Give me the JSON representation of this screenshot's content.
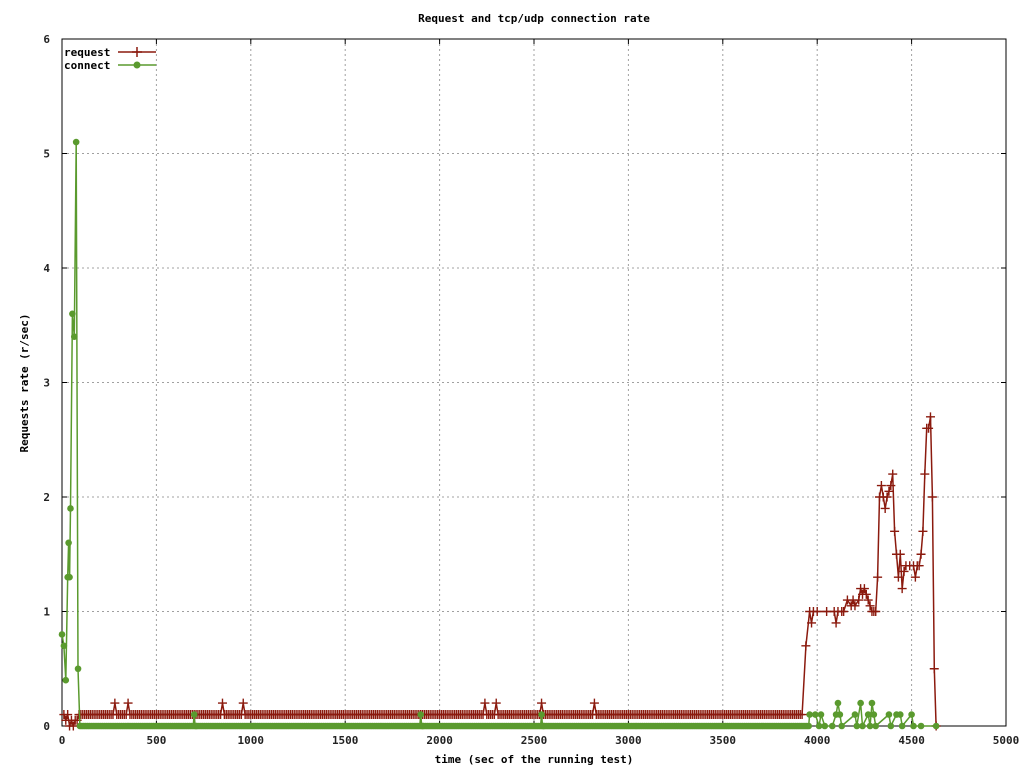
{
  "chart_data": {
    "type": "line",
    "title": "Request and tcp/udp connection rate",
    "xlabel": "time (sec of the running test)",
    "ylabel": "Requests rate (r/sec)",
    "xlim": [
      0,
      5000
    ],
    "ylim": [
      0,
      6
    ],
    "x_ticks": [
      "0",
      "500",
      "1000",
      "1500",
      "2000",
      "2500",
      "3000",
      "3500",
      "4000",
      "4500",
      "5000"
    ],
    "y_ticks": [
      "0",
      "1",
      "2",
      "3",
      "4",
      "5",
      "6"
    ],
    "grid": true,
    "legend_position": "top-left",
    "series": [
      {
        "name": "request",
        "color": "#8b1a0e",
        "marker": "plus",
        "points": [
          [
            10,
            0.1
          ],
          [
            20,
            0.05
          ],
          [
            30,
            0.1
          ],
          [
            40,
            0.0
          ],
          [
            50,
            0.05
          ],
          [
            60,
            0.0
          ],
          [
            70,
            0.05
          ],
          [
            80,
            0.05
          ],
          [
            90,
            0.1
          ],
          [
            280,
            0.2
          ],
          [
            290,
            0.1
          ],
          [
            350,
            0.2
          ],
          [
            360,
            0.1
          ],
          [
            850,
            0.2
          ],
          [
            860,
            0.1
          ],
          [
            960,
            0.2
          ],
          [
            970,
            0.1
          ],
          [
            2240,
            0.2
          ],
          [
            2250,
            0.1
          ],
          [
            2300,
            0.2
          ],
          [
            2310,
            0.1
          ],
          [
            2540,
            0.2
          ],
          [
            2550,
            0.1
          ],
          [
            2820,
            0.2
          ],
          [
            2830,
            0.1
          ],
          [
            3920,
            0.1
          ],
          [
            3940,
            0.7
          ],
          [
            3960,
            1.0
          ],
          [
            3970,
            0.9
          ],
          [
            3980,
            1.0
          ],
          [
            4000,
            1.0
          ],
          [
            4050,
            1.0
          ],
          [
            4090,
            1.0
          ],
          [
            4100,
            0.9
          ],
          [
            4110,
            1.0
          ],
          [
            4130,
            1.0
          ],
          [
            4140,
            1.0
          ],
          [
            4160,
            1.1
          ],
          [
            4180,
            1.05
          ],
          [
            4190,
            1.1
          ],
          [
            4200,
            1.05
          ],
          [
            4220,
            1.1
          ],
          [
            4230,
            1.2
          ],
          [
            4240,
            1.15
          ],
          [
            4250,
            1.2
          ],
          [
            4260,
            1.15
          ],
          [
            4270,
            1.1
          ],
          [
            4280,
            1.05
          ],
          [
            4290,
            1.0
          ],
          [
            4300,
            1.0
          ],
          [
            4310,
            1.0
          ],
          [
            4320,
            1.3
          ],
          [
            4330,
            2.0
          ],
          [
            4340,
            2.1
          ],
          [
            4350,
            2.0
          ],
          [
            4360,
            1.9
          ],
          [
            4370,
            2.0
          ],
          [
            4380,
            2.05
          ],
          [
            4390,
            2.1
          ],
          [
            4400,
            2.2
          ],
          [
            4410,
            1.7
          ],
          [
            4420,
            1.5
          ],
          [
            4430,
            1.3
          ],
          [
            4440,
            1.5
          ],
          [
            4450,
            1.2
          ],
          [
            4460,
            1.35
          ],
          [
            4470,
            1.4
          ],
          [
            4490,
            1.4
          ],
          [
            4510,
            1.4
          ],
          [
            4520,
            1.3
          ],
          [
            4530,
            1.4
          ],
          [
            4540,
            1.4
          ],
          [
            4550,
            1.5
          ],
          [
            4560,
            1.7
          ],
          [
            4570,
            2.2
          ],
          [
            4580,
            2.6
          ],
          [
            4590,
            2.6
          ],
          [
            4600,
            2.7
          ],
          [
            4610,
            2.0
          ],
          [
            4620,
            0.5
          ],
          [
            4630,
            0.0
          ]
        ],
        "baseline_range": [
          90,
          3920
        ],
        "baseline_value": 0.1,
        "baseline_step": 10
      },
      {
        "name": "connect",
        "color": "#5a9a2e",
        "marker": "filled-circle",
        "points": [
          [
            0,
            0.8
          ],
          [
            10,
            0.7
          ],
          [
            20,
            0.4
          ],
          [
            30,
            1.3
          ],
          [
            35,
            1.6
          ],
          [
            40,
            1.3
          ],
          [
            45,
            1.9
          ],
          [
            55,
            3.6
          ],
          [
            65,
            3.4
          ],
          [
            75,
            5.1
          ],
          [
            85,
            0.5
          ],
          [
            95,
            0.0
          ],
          [
            700,
            0.1
          ],
          [
            710,
            0.0
          ],
          [
            1900,
            0.1
          ],
          [
            1910,
            0.0
          ],
          [
            2540,
            0.1
          ],
          [
            2550,
            0.0
          ],
          [
            3960,
            0.1
          ],
          [
            3990,
            0.1
          ],
          [
            4010,
            0.0
          ],
          [
            4020,
            0.1
          ],
          [
            4040,
            0.0
          ],
          [
            4080,
            0.0
          ],
          [
            4100,
            0.1
          ],
          [
            4110,
            0.2
          ],
          [
            4120,
            0.1
          ],
          [
            4130,
            0.0
          ],
          [
            4200,
            0.1
          ],
          [
            4210,
            0.0
          ],
          [
            4230,
            0.2
          ],
          [
            4240,
            0.0
          ],
          [
            4270,
            0.1
          ],
          [
            4280,
            0.0
          ],
          [
            4290,
            0.2
          ],
          [
            4300,
            0.1
          ],
          [
            4310,
            0.0
          ],
          [
            4380,
            0.1
          ],
          [
            4390,
            0.0
          ],
          [
            4420,
            0.1
          ],
          [
            4440,
            0.1
          ],
          [
            4450,
            0.0
          ],
          [
            4500,
            0.1
          ],
          [
            4510,
            0.0
          ],
          [
            4550,
            0.0
          ],
          [
            4630,
            0.0
          ]
        ],
        "baseline_range": [
          95,
          3960
        ],
        "baseline_value": 0.0,
        "baseline_step": 10
      }
    ]
  }
}
